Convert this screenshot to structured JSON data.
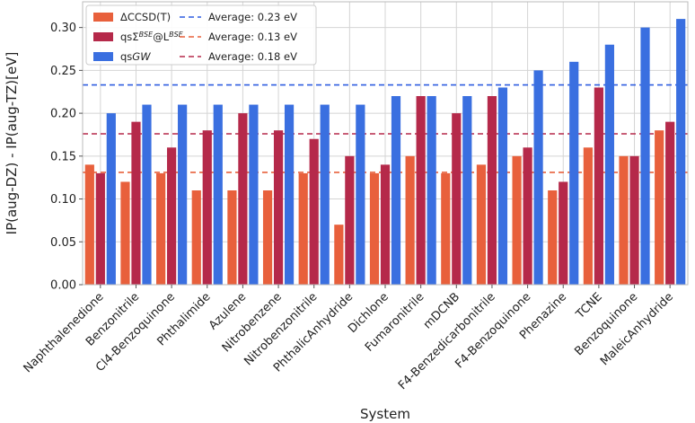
{
  "chart_data": {
    "type": "bar",
    "title": "",
    "xlabel": "System",
    "ylabel": "IP(aug-DZ) - IP(aug-TZ)[eV]",
    "ylim": [
      0,
      0.33
    ],
    "yticks": [
      "0.00",
      "0.05",
      "0.10",
      "0.15",
      "0.20",
      "0.25",
      "0.30"
    ],
    "grid": true,
    "legend_position": "top-left",
    "categories": [
      "Naphthalenedione",
      "Benzonitrile",
      "Cl4-Benzoquinone",
      "Phthalimide",
      "Azulene",
      "Nitrobenzene",
      "Nitrobenzonitrile",
      "PhthalicAnhydride",
      "Dichlone",
      "Fumaronitrile",
      "mDCNB",
      "F4-Benzedicarbonitrile",
      "F4-Benzoquinone",
      "Phenazine",
      "TCNE",
      "Benzoquinone",
      "MaleicAnhydride"
    ],
    "series": [
      {
        "name": "ΔCCSD(T)",
        "color": "#e8603c",
        "values": [
          0.14,
          0.12,
          0.13,
          0.11,
          0.11,
          0.11,
          0.13,
          0.07,
          0.13,
          0.15,
          0.13,
          0.14,
          0.15,
          0.11,
          0.16,
          0.15,
          0.18
        ]
      },
      {
        "name": "qsΣBSE@LBSE",
        "name_parts": [
          "qsΣ",
          "BSE",
          "@L",
          "BSE"
        ],
        "color": "#b5294a",
        "values": [
          0.13,
          0.19,
          0.16,
          0.18,
          0.2,
          0.18,
          0.17,
          0.15,
          0.14,
          0.22,
          0.2,
          0.22,
          0.16,
          0.12,
          0.23,
          0.15,
          0.19
        ]
      },
      {
        "name": "qsGW",
        "name_parts": [
          "qs",
          "GW"
        ],
        "color": "#3a6fe0",
        "values": [
          0.2,
          0.21,
          0.21,
          0.21,
          0.21,
          0.21,
          0.21,
          0.21,
          0.22,
          0.22,
          0.22,
          0.23,
          0.25,
          0.26,
          0.28,
          0.3,
          0.31
        ]
      }
    ],
    "reference_lines": [
      {
        "label": "Average: 0.23 eV",
        "value": 0.233,
        "color": "#2f5de0"
      },
      {
        "label": "Average: 0.13 eV",
        "value": 0.131,
        "color": "#e8603c"
      },
      {
        "label": "Average: 0.18 eV",
        "value": 0.176,
        "color": "#b5294a"
      }
    ]
  }
}
